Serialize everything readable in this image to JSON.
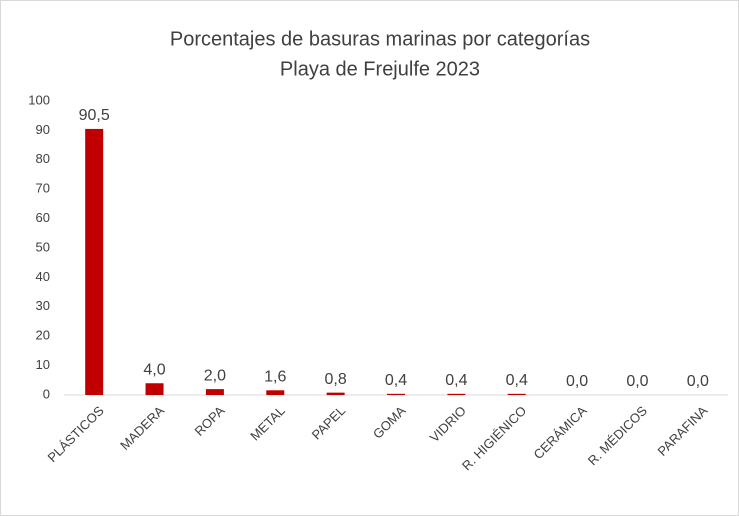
{
  "chart_data": {
    "type": "bar",
    "title": "Porcentajes de basuras marinas por categorías",
    "subtitle": "Playa de Frejulfe 2023",
    "categories": [
      "PLÁSTICOS",
      "MADERA",
      "ROPA",
      "METAL",
      "PAPEL",
      "GOMA",
      "VIDRIO",
      "R. HIGIÉNICO",
      "CERÁMICA",
      "R. MÉDICOS",
      "PARAFINA"
    ],
    "values": [
      90.5,
      4.0,
      2.0,
      1.6,
      0.8,
      0.4,
      0.4,
      0.4,
      0.0,
      0.0,
      0.0
    ],
    "value_labels": [
      "90,5",
      "4,0",
      "2,0",
      "1,6",
      "0,8",
      "0,4",
      "0,4",
      "0,4",
      "0,0",
      "0,0",
      "0,0"
    ],
    "color": "#c00000",
    "ylim": [
      0,
      100
    ],
    "yticks": [
      0,
      10,
      20,
      30,
      40,
      50,
      60,
      70,
      80,
      90,
      100
    ],
    "grid": false
  }
}
